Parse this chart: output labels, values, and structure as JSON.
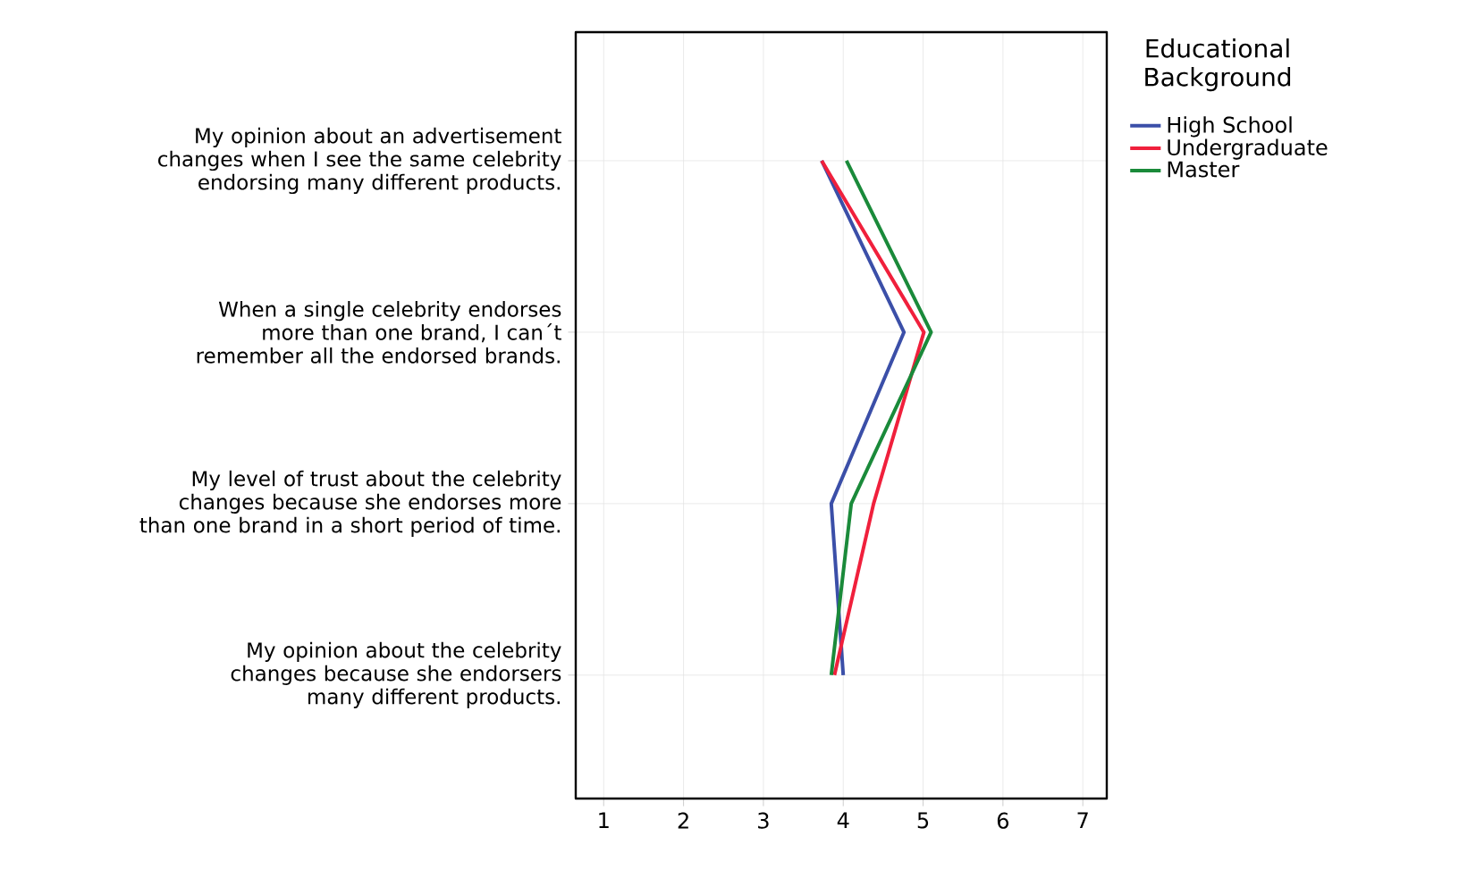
{
  "chart_data": {
    "type": "line",
    "orientation": "horizontal",
    "categories": [
      "My opinion about an advertisement changes when I see the same celebrity endorsing many different products.",
      "When a single celebrity endorses more than one brand, I can´t remember all the endorsed brands.",
      "My level of trust about the celebrity changes because she endorses more than one brand in a short period of time.",
      "My opinion about the celebrity changes because she endorsers many different products."
    ],
    "legend_title": "Educational Background",
    "series": [
      {
        "name": "High School",
        "color": "#3b4fa8",
        "values": [
          3.73,
          4.76,
          3.85,
          4.0
        ]
      },
      {
        "name": "Undergraduate",
        "color": "#f0203c",
        "values": [
          3.73,
          5.01,
          4.38,
          3.89
        ]
      },
      {
        "name": "Master",
        "color": "#1a8a3a",
        "values": [
          4.04,
          5.1,
          4.1,
          3.85
        ]
      }
    ],
    "xlim": [
      0.65,
      7.3
    ],
    "xticks": [
      1,
      2,
      3,
      4,
      5,
      6,
      7
    ],
    "grid": true,
    "legend": "top right",
    "marker": "none",
    "line_style": "solid"
  }
}
